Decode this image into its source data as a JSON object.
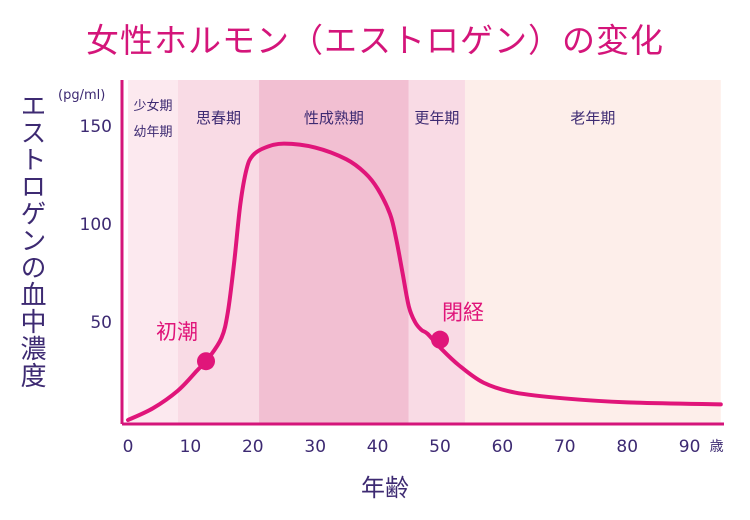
{
  "chart_data": {
    "type": "line",
    "title": "女性ホルモン（エストロゲン）の変化",
    "ylabel": "エストロゲンの血中濃度",
    "y_unit": "(pg/ml)",
    "xlabel": "年齢",
    "x_unit": "歳",
    "xlim": [
      0,
      95
    ],
    "ylim": [
      0,
      165
    ],
    "x_ticks": [
      0,
      10,
      20,
      30,
      40,
      50,
      60,
      70,
      80,
      90
    ],
    "y_ticks": [
      50,
      100,
      150
    ],
    "grid": false,
    "color": "#e0157a",
    "phases": [
      {
        "lines": [
          "少女期",
          "幼年期"
        ],
        "from": 0,
        "to": 8,
        "color": "#fce9ef"
      },
      {
        "lines": [
          "思春期"
        ],
        "from": 8,
        "to": 21,
        "color": "#f9dbe5"
      },
      {
        "lines": [
          "性成熟期"
        ],
        "from": 21,
        "to": 45,
        "color": "#f2bfd2"
      },
      {
        "lines": [
          "更年期"
        ],
        "from": 45,
        "to": 54,
        "color": "#f9dbe5"
      },
      {
        "lines": [
          "老年期"
        ],
        "from": 54,
        "to": 95,
        "color": "#fdeeea"
      }
    ],
    "series": [
      {
        "x": [
          0,
          4,
          8,
          11,
          13,
          15,
          16,
          17,
          18,
          19,
          20,
          22,
          25,
          30,
          35,
          38,
          40,
          42,
          43,
          44,
          45,
          46,
          47,
          48,
          50,
          53,
          57,
          62,
          70,
          80,
          95
        ],
        "y": [
          0,
          6,
          15,
          25,
          32,
          42,
          55,
          80,
          110,
          128,
          135,
          139,
          141,
          139,
          133,
          126,
          118,
          105,
          92,
          75,
          58,
          50,
          46,
          44,
          37,
          28,
          19,
          14,
          11,
          9,
          8
        ]
      }
    ],
    "annotations": [
      {
        "text": "初潮",
        "x": 12.5,
        "y": 30
      },
      {
        "text": "閉経",
        "x": 50,
        "y": 41
      }
    ]
  }
}
